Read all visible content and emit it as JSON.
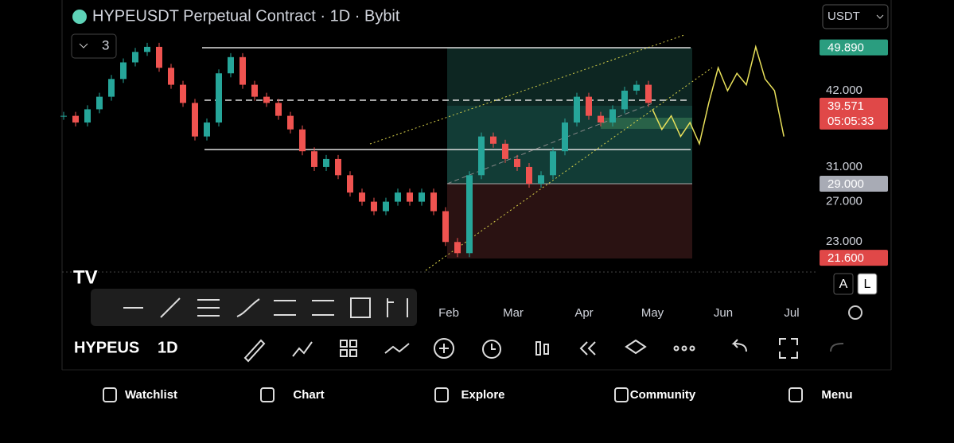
{
  "header": {
    "title": "HYPEUSDT Perpetual Contract · 1D · Bybit",
    "currency": "USDT",
    "indicator_count": "3"
  },
  "chart_data": {
    "type": "candlestick",
    "log_scale": true,
    "ylim": [
      20.41,
      60.25
    ],
    "yticks": [
      {
        "value": 42,
        "label": "42.000"
      },
      {
        "value": 31,
        "label": "31.000"
      },
      {
        "value": 27,
        "label": "27.000"
      },
      {
        "value": 23,
        "label": "23.000"
      }
    ],
    "values": [
      38,
      37,
      39,
      41,
      44,
      47,
      49,
      50,
      46,
      43,
      40,
      35,
      37,
      45,
      48,
      43,
      41,
      40,
      38,
      36,
      33,
      31,
      32,
      30,
      28,
      27,
      26,
      27,
      28,
      27,
      28,
      26,
      23,
      22,
      30,
      35,
      34,
      32,
      31,
      29,
      30,
      33,
      37,
      41,
      38,
      37,
      39,
      42,
      43,
      40
    ],
    "up_color": "#26a69a",
    "down_color": "#ef5350",
    "projection": [
      39,
      36,
      38,
      35,
      37,
      34,
      40,
      46,
      42,
      45,
      43,
      50,
      44,
      42,
      35
    ],
    "projection_color": "#e8e05a",
    "months": [
      "Feb",
      "Mar",
      "Apr",
      "May",
      "Jun",
      "Jul"
    ],
    "price_labels": [
      {
        "value": 49.89,
        "label": "49.890",
        "color": "#2a9d7f"
      },
      {
        "value": 39.571,
        "label": "39.571",
        "countdown": "05:05:33",
        "color": "#e04848"
      },
      {
        "value": 29,
        "label": "29.000",
        "color": "#a8abb5"
      },
      {
        "value": 21.6,
        "label": "21.600",
        "color": "#e04848"
      }
    ],
    "scale_buttons": [
      "A",
      "L"
    ]
  },
  "bottom_bar": {
    "symbol": "HYPEUS",
    "interval": "1D"
  },
  "nav": [
    "Watchlist",
    "Chart",
    "Explore",
    "Community",
    "Menu"
  ]
}
